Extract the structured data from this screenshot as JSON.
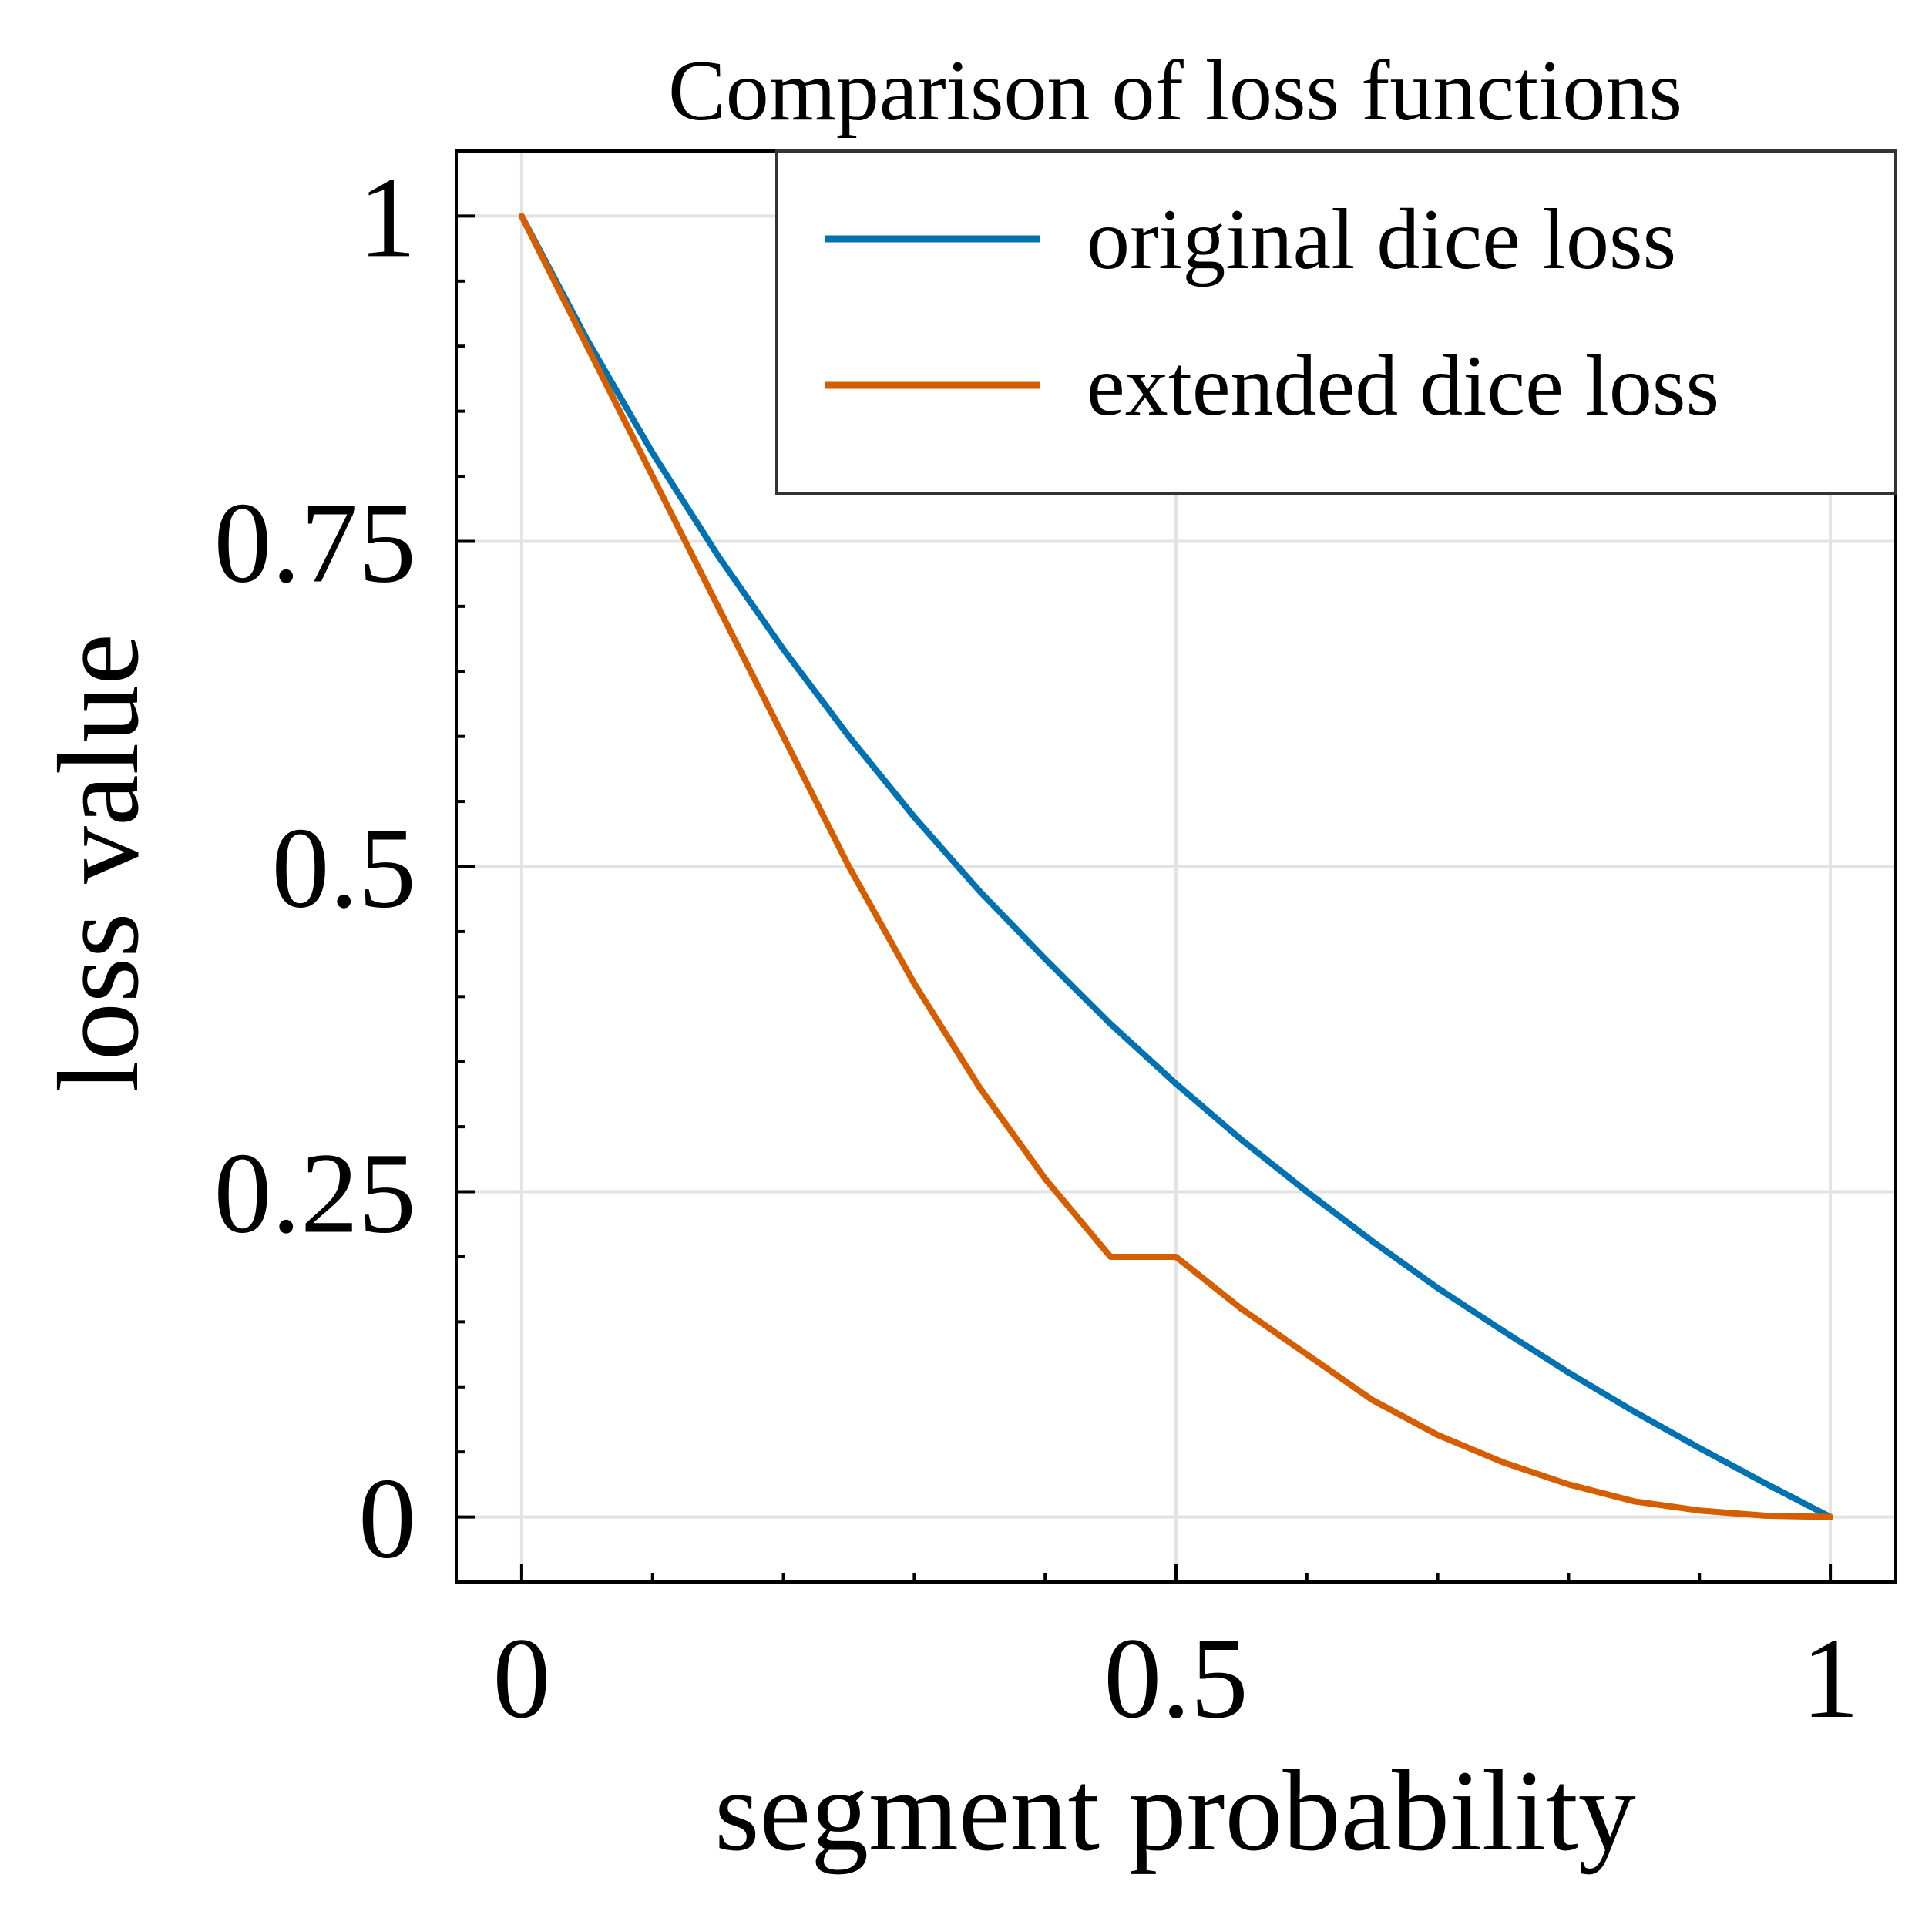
{
  "chart_data": {
    "type": "line",
    "title": "Comparison of loss functions",
    "xlabel": "segment probability",
    "ylabel": "loss value",
    "xlim": [
      -0.05,
      1.05
    ],
    "ylim": [
      -0.05,
      1.05
    ],
    "x_ticks": [
      0,
      0.5,
      1
    ],
    "x_tick_labels": [
      "0",
      "0.5",
      "1"
    ],
    "y_ticks": [
      0,
      0.25,
      0.5,
      0.75,
      1
    ],
    "y_tick_labels": [
      "0",
      "0.25",
      "0.5",
      "0.75",
      "1"
    ],
    "grid": true,
    "legend_position": "top-right",
    "x": [
      0,
      0.05,
      0.1,
      0.15,
      0.2,
      0.25,
      0.3,
      0.35,
      0.4,
      0.45,
      0.5,
      0.55,
      0.6,
      0.65,
      0.7,
      0.75,
      0.8,
      0.85,
      0.9,
      0.95,
      1
    ],
    "series": [
      {
        "name": "original dice loss",
        "color": "#0072b2",
        "values": [
          1.0,
          0.905,
          0.818,
          0.739,
          0.667,
          0.6,
          0.538,
          0.481,
          0.429,
          0.379,
          0.333,
          0.29,
          0.25,
          0.212,
          0.176,
          0.143,
          0.111,
          0.081,
          0.053,
          0.026,
          0.0
        ]
      },
      {
        "name": "extended dice loss",
        "color": "#d55e00",
        "values": [
          1.0,
          0.9,
          0.8,
          0.7,
          0.6,
          0.5,
          0.41,
          0.33,
          0.26,
          0.2,
          0.2,
          0.16,
          0.125,
          0.09,
          0.063,
          0.042,
          0.025,
          0.012,
          0.005,
          0.001,
          0.0
        ]
      }
    ]
  }
}
